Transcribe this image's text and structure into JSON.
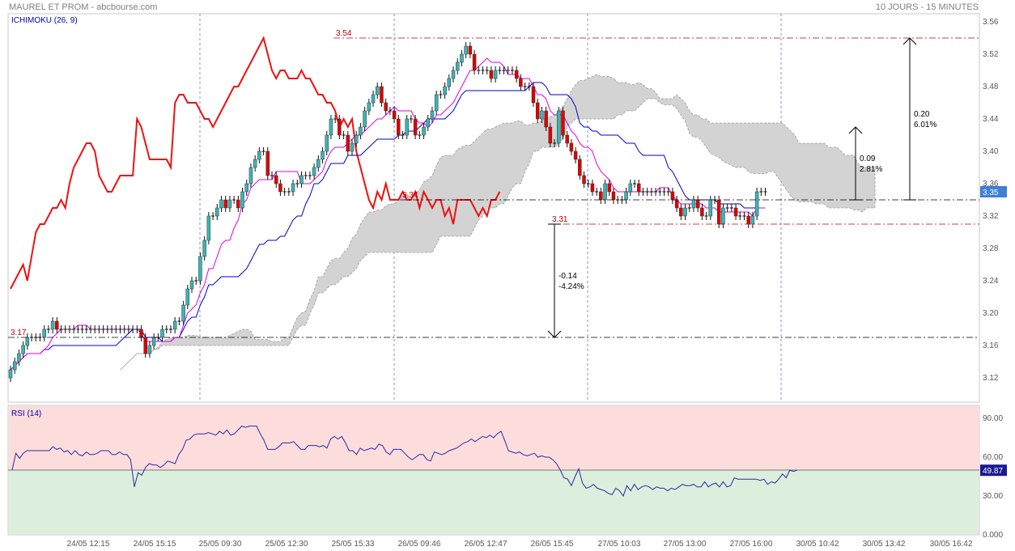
{
  "header": {
    "title": "MAUREL ET PROM - abcbourse.com",
    "period": "10 JOURS - 15 MINUTES"
  },
  "colors": {
    "bull": "#3cb4b4",
    "bear": "#e00000",
    "tenkan": "#e000e0",
    "kijun": "#0000c8",
    "chikou": "#ee1111",
    "kumo": "#d3d3d3",
    "rsi_line": "#2a2aa8",
    "overbought": "#fddcdc",
    "oversold": "#dcefdc",
    "last_price_tag": "#3f7fd8"
  },
  "chart_data": [
    {
      "type": "candlestick",
      "title": "ICHIMOKU (26, 9)",
      "x_tick_labels": [
        "24/05 12:15",
        "24/05 15:15",
        "25/05 09:30",
        "25/05 12:30",
        "25/05 15:33",
        "26/05 09:46",
        "26/05 12:47",
        "26/05 15:45",
        "27/05 10:03",
        "27/05 13:00",
        "27/05 16:00",
        "30/05 10:42",
        "30/05 13:42",
        "30/05 16:42"
      ],
      "y_ticks": [
        "3.12",
        "3.16",
        "3.20",
        "3.24",
        "3.28",
        "3.32",
        "3.36",
        "3.40",
        "3.44",
        "3.48",
        "3.52",
        "3.56"
      ],
      "ylim": [
        3.09,
        3.57
      ],
      "last_price": "3.35",
      "levels": [
        {
          "label": "3.54",
          "value": 3.54
        },
        {
          "label": "3.34",
          "value": 3.34
        },
        {
          "label": "3.31",
          "value": 3.31
        },
        {
          "label": "3.17",
          "value": 3.17
        }
      ],
      "measures": [
        {
          "from": 3.34,
          "to": 3.54,
          "text": [
            "0.20",
            "6.01%"
          ]
        },
        {
          "from": 3.34,
          "to": 3.43,
          "text": [
            "0.09",
            "2.81%"
          ]
        },
        {
          "from": 3.31,
          "to": 3.17,
          "text": [
            "-0.14",
            "-4.24%"
          ]
        }
      ],
      "close": [
        3.13,
        3.14,
        3.15,
        3.16,
        3.17,
        3.17,
        3.17,
        3.17,
        3.18,
        3.18,
        3.19,
        3.18,
        3.18,
        3.18,
        3.18,
        3.18,
        3.18,
        3.18,
        3.18,
        3.18,
        3.18,
        3.18,
        3.18,
        3.18,
        3.18,
        3.18,
        3.18,
        3.18,
        3.18,
        3.18,
        3.18,
        3.17,
        3.15,
        3.16,
        3.17,
        3.17,
        3.18,
        3.18,
        3.18,
        3.19,
        3.19,
        3.21,
        3.23,
        3.24,
        3.24,
        3.27,
        3.29,
        3.32,
        3.32,
        3.33,
        3.34,
        3.33,
        3.34,
        3.34,
        3.33,
        3.35,
        3.36,
        3.38,
        3.39,
        3.4,
        3.4,
        3.37,
        3.37,
        3.36,
        3.35,
        3.35,
        3.35,
        3.36,
        3.36,
        3.37,
        3.37,
        3.37,
        3.38,
        3.39,
        3.4,
        3.42,
        3.44,
        3.44,
        3.42,
        3.42,
        3.4,
        3.41,
        3.42,
        3.43,
        3.45,
        3.46,
        3.47,
        3.48,
        3.46,
        3.45,
        3.45,
        3.44,
        3.42,
        3.42,
        3.44,
        3.44,
        3.42,
        3.42,
        3.43,
        3.44,
        3.45,
        3.47,
        3.47,
        3.48,
        3.49,
        3.5,
        3.51,
        3.52,
        3.53,
        3.52,
        3.5,
        3.5,
        3.5,
        3.5,
        3.49,
        3.5,
        3.5,
        3.5,
        3.5,
        3.5,
        3.49,
        3.48,
        3.48,
        3.48,
        3.46,
        3.44,
        3.45,
        3.43,
        3.41,
        3.41,
        3.45,
        3.42,
        3.41,
        3.4,
        3.39,
        3.37,
        3.36,
        3.36,
        3.35,
        3.35,
        3.34,
        3.36,
        3.35,
        3.34,
        3.34,
        3.34,
        3.35,
        3.36,
        3.36,
        3.35,
        3.35,
        3.35,
        3.35,
        3.35,
        3.35,
        3.35,
        3.35,
        3.34,
        3.33,
        3.32,
        3.33,
        3.33,
        3.34,
        3.33,
        3.32,
        3.32,
        3.34,
        3.34,
        3.31,
        3.33,
        3.33,
        3.33,
        3.32,
        3.32,
        3.32,
        3.31,
        3.32,
        3.35,
        3.35,
        3.35
      ],
      "chikou": [
        3.23,
        3.24,
        3.25,
        3.26,
        3.24,
        3.27,
        3.3,
        3.31,
        3.31,
        3.32,
        3.33,
        3.33,
        3.34,
        3.33,
        3.36,
        3.38,
        3.39,
        3.4,
        3.41,
        3.41,
        3.4,
        3.37,
        3.36,
        3.35,
        3.35,
        3.36,
        3.37,
        3.37,
        3.37,
        3.37,
        3.44,
        3.43,
        3.41,
        3.39,
        3.39,
        3.39,
        3.39,
        3.39,
        3.38,
        3.46,
        3.47,
        3.47,
        3.46,
        3.46,
        3.46,
        3.45,
        3.44,
        3.44,
        3.43,
        3.44,
        3.45,
        3.46,
        3.47,
        3.48,
        3.48,
        3.49,
        3.5,
        3.51,
        3.52,
        3.53,
        3.54,
        3.52,
        3.5,
        3.49,
        3.5,
        3.5,
        3.49,
        3.49,
        3.49,
        3.5,
        3.49,
        3.49,
        3.48,
        3.47,
        3.47,
        3.46,
        3.46,
        3.45,
        3.43,
        3.44,
        3.43,
        3.44,
        3.4,
        3.38,
        3.36,
        3.34,
        3.33,
        3.35,
        3.34,
        3.36,
        3.34,
        3.34,
        3.34,
        3.35,
        3.34,
        3.34,
        3.35,
        3.33,
        3.35,
        3.34,
        3.33,
        3.34,
        3.34,
        3.32,
        3.33,
        3.31,
        3.34,
        3.34,
        3.34,
        3.34,
        3.33,
        3.32,
        3.33,
        3.32,
        3.34,
        3.34,
        3.35
      ],
      "rsi": {
        "title": "RSI (14)",
        "y_ticks": [
          "90.00",
          "60.00",
          "30.00",
          "0.000"
        ],
        "ylim": [
          0,
          100
        ],
        "last": "49.87",
        "values": [
          50,
          63,
          59,
          63,
          65,
          65,
          65,
          65,
          65,
          65,
          65,
          68,
          66,
          67,
          64,
          65,
          62,
          65,
          62,
          61,
          64,
          62,
          62,
          63,
          65,
          65,
          65,
          62,
          62,
          64,
          62,
          62,
          58,
          37,
          48,
          46,
          52,
          55,
          54,
          54,
          52,
          54,
          57,
          56,
          55,
          62,
          66,
          73,
          74,
          77,
          78,
          78,
          78,
          79,
          78,
          77,
          80,
          78,
          81,
          77,
          78,
          81,
          84,
          83,
          84,
          84,
          84,
          78,
          73,
          66,
          66,
          66,
          68,
          71,
          71,
          71,
          72,
          69,
          66,
          66,
          69,
          69,
          69,
          68,
          69,
          67,
          74,
          76,
          74,
          76,
          71,
          65,
          65,
          62,
          67,
          65,
          66,
          67,
          66,
          70,
          69,
          64,
          62,
          66,
          66,
          66,
          63,
          60,
          58,
          60,
          62,
          62,
          58,
          57,
          64,
          63,
          62,
          63,
          65,
          66,
          67,
          69,
          71,
          72,
          74,
          72,
          74,
          76,
          75,
          77,
          75,
          78,
          80,
          73,
          65,
          64,
          63,
          64,
          62,
          61,
          62,
          63,
          60,
          61,
          60,
          60,
          58,
          55,
          50,
          44,
          43,
          38,
          45,
          51,
          40,
          36,
          37,
          39,
          36,
          35,
          34,
          32,
          31,
          36,
          34,
          30,
          38,
          34,
          39,
          35,
          37,
          38,
          37,
          35,
          37,
          36,
          36,
          34,
          36,
          35,
          37,
          39,
          38,
          38,
          39,
          37,
          37,
          41,
          37,
          39,
          40,
          37,
          41,
          37,
          38,
          44,
          43,
          43,
          43,
          43,
          43,
          43,
          42,
          43,
          39,
          41,
          40,
          43,
          47,
          44,
          50,
          49,
          50
        ]
      }
    }
  ]
}
